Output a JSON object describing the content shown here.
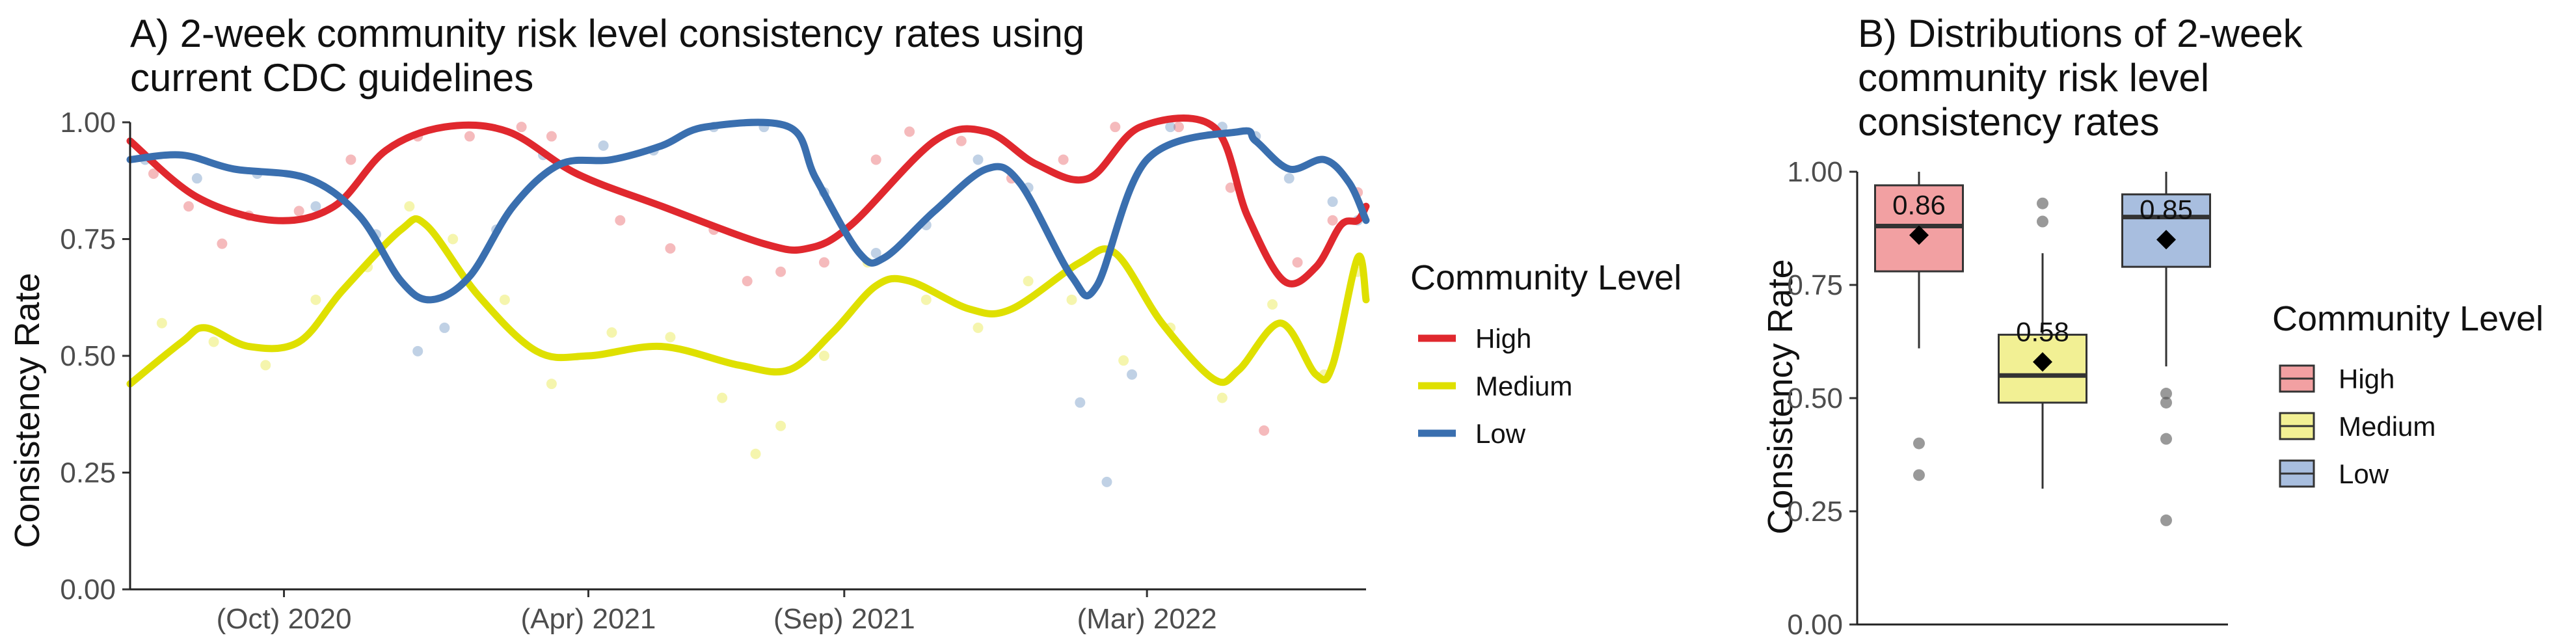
{
  "chart_data": [
    {
      "type": "scatter",
      "title_lines": [
        "A) 2-week community risk level consistency rates using",
        "current CDC guidelines"
      ],
      "xlabel": "",
      "ylabel": "Consistency Rate",
      "x_range": [
        "2020-07-01",
        "2022-07-10"
      ],
      "ylim": [
        0,
        1
      ],
      "x_ticks": [
        {
          "date": "2020-10-01",
          "label": "(Oct) 2020"
        },
        {
          "date": "2021-04-01",
          "label": "(Apr) 2021"
        },
        {
          "date": "2021-09-01",
          "label": "(Sep) 2021"
        },
        {
          "date": "2022-03-01",
          "label": "(Mar) 2022"
        }
      ],
      "y_ticks": [
        "0.00",
        "0.25",
        "0.50",
        "0.75",
        "1.00"
      ],
      "grid": false,
      "legend_title": "Community Level",
      "legend_position": "right",
      "series": [
        {
          "name": "High",
          "color": "#e0282e",
          "smooth": [
            [
              "2020-07-01",
              0.96
            ],
            [
              "2020-08-10",
              0.84
            ],
            [
              "2020-09-25",
              0.79
            ],
            [
              "2020-10-31",
              0.82
            ],
            [
              "2020-12-01",
              0.94
            ],
            [
              "2021-01-05",
              0.99
            ],
            [
              "2021-02-12",
              0.98
            ],
            [
              "2021-03-25",
              0.89
            ],
            [
              "2021-05-15",
              0.82
            ],
            [
              "2021-07-15",
              0.74
            ],
            [
              "2021-08-10",
              0.73
            ],
            [
              "2021-09-05",
              0.78
            ],
            [
              "2021-10-25",
              0.96
            ],
            [
              "2021-11-25",
              0.98
            ],
            [
              "2021-12-25",
              0.91
            ],
            [
              "2022-01-25",
              0.88
            ],
            [
              "2022-02-25",
              0.99
            ],
            [
              "2022-04-10",
              0.99
            ],
            [
              "2022-04-30",
              0.8
            ],
            [
              "2022-05-22",
              0.66
            ],
            [
              "2022-06-10",
              0.69
            ],
            [
              "2022-06-25",
              0.78
            ],
            [
              "2022-07-05",
              0.79
            ],
            [
              "2022-07-10",
              0.82
            ]
          ],
          "points": [
            [
              "2020-07-15",
              0.89
            ],
            [
              "2020-08-05",
              0.82
            ],
            [
              "2020-08-25",
              0.74
            ],
            [
              "2020-09-10",
              0.8
            ],
            [
              "2020-10-10",
              0.81
            ],
            [
              "2020-11-10",
              0.92
            ],
            [
              "2020-12-20",
              0.97
            ],
            [
              "2021-01-20",
              0.97
            ],
            [
              "2021-02-20",
              0.99
            ],
            [
              "2021-03-10",
              0.97
            ],
            [
              "2021-04-20",
              0.79
            ],
            [
              "2021-05-20",
              0.73
            ],
            [
              "2021-06-15",
              0.77
            ],
            [
              "2021-07-05",
              0.66
            ],
            [
              "2021-07-25",
              0.68
            ],
            [
              "2021-08-20",
              0.7
            ],
            [
              "2021-09-20",
              0.92
            ],
            [
              "2021-10-10",
              0.98
            ],
            [
              "2021-11-10",
              0.96
            ],
            [
              "2021-12-10",
              0.88
            ],
            [
              "2022-01-10",
              0.92
            ],
            [
              "2022-02-10",
              0.99
            ],
            [
              "2022-03-20",
              0.99
            ],
            [
              "2022-04-20",
              0.86
            ],
            [
              "2022-05-10",
              0.34
            ],
            [
              "2022-05-30",
              0.7
            ],
            [
              "2022-06-20",
              0.79
            ],
            [
              "2022-07-05",
              0.85
            ]
          ]
        },
        {
          "name": "Medium",
          "color": "#dfe000",
          "smooth": [
            [
              "2020-07-01",
              0.44
            ],
            [
              "2020-08-01",
              0.53
            ],
            [
              "2020-08-15",
              0.56
            ],
            [
              "2020-09-10",
              0.52
            ],
            [
              "2020-10-10",
              0.53
            ],
            [
              "2020-11-05",
              0.64
            ],
            [
              "2020-12-10",
              0.77
            ],
            [
              "2020-12-25",
              0.78
            ],
            [
              "2021-01-25",
              0.63
            ],
            [
              "2021-03-01",
              0.51
            ],
            [
              "2021-04-01",
              0.5
            ],
            [
              "2021-05-15",
              0.52
            ],
            [
              "2021-06-30",
              0.48
            ],
            [
              "2021-07-30",
              0.47
            ],
            [
              "2021-08-25",
              0.55
            ],
            [
              "2021-09-20",
              0.65
            ],
            [
              "2021-10-10",
              0.66
            ],
            [
              "2021-11-15",
              0.6
            ],
            [
              "2021-12-10",
              0.6
            ],
            [
              "2022-01-20",
              0.7
            ],
            [
              "2022-02-10",
              0.72
            ],
            [
              "2022-03-10",
              0.57
            ],
            [
              "2022-04-10",
              0.45
            ],
            [
              "2022-04-25",
              0.47
            ],
            [
              "2022-05-20",
              0.57
            ],
            [
              "2022-06-10",
              0.46
            ],
            [
              "2022-06-20",
              0.48
            ],
            [
              "2022-07-05",
              0.71
            ],
            [
              "2022-07-10",
              0.62
            ]
          ],
          "points": [
            [
              "2020-07-20",
              0.57
            ],
            [
              "2020-08-20",
              0.53
            ],
            [
              "2020-09-20",
              0.48
            ],
            [
              "2020-10-20",
              0.62
            ],
            [
              "2020-11-20",
              0.69
            ],
            [
              "2020-12-15",
              0.82
            ],
            [
              "2021-01-10",
              0.75
            ],
            [
              "2021-02-10",
              0.62
            ],
            [
              "2021-03-10",
              0.44
            ],
            [
              "2021-04-15",
              0.55
            ],
            [
              "2021-05-20",
              0.54
            ],
            [
              "2021-06-20",
              0.41
            ],
            [
              "2021-07-10",
              0.29
            ],
            [
              "2021-07-25",
              0.35
            ],
            [
              "2021-08-20",
              0.5
            ],
            [
              "2021-09-15",
              0.7
            ],
            [
              "2021-10-20",
              0.62
            ],
            [
              "2021-11-20",
              0.56
            ],
            [
              "2021-12-20",
              0.66
            ],
            [
              "2022-01-15",
              0.62
            ],
            [
              "2022-02-15",
              0.49
            ],
            [
              "2022-03-15",
              0.56
            ],
            [
              "2022-04-15",
              0.41
            ],
            [
              "2022-05-15",
              0.61
            ],
            [
              "2022-06-15",
              0.46
            ],
            [
              "2022-07-05",
              0.68
            ]
          ]
        },
        {
          "name": "Low",
          "color": "#3a6faf",
          "smooth": [
            [
              "2020-07-01",
              0.92
            ],
            [
              "2020-08-01",
              0.93
            ],
            [
              "2020-09-01",
              0.9
            ],
            [
              "2020-10-15",
              0.88
            ],
            [
              "2020-11-15",
              0.8
            ],
            [
              "2020-12-10",
              0.66
            ],
            [
              "2020-12-28",
              0.62
            ],
            [
              "2021-01-20",
              0.67
            ],
            [
              "2021-02-15",
              0.82
            ],
            [
              "2021-03-15",
              0.91
            ],
            [
              "2021-04-15",
              0.92
            ],
            [
              "2021-05-15",
              0.95
            ],
            [
              "2021-06-10",
              0.99
            ],
            [
              "2021-07-30",
              0.99
            ],
            [
              "2021-08-15",
              0.88
            ],
            [
              "2021-09-10",
              0.72
            ],
            [
              "2021-09-25",
              0.71
            ],
            [
              "2021-10-25",
              0.81
            ],
            [
              "2021-11-25",
              0.9
            ],
            [
              "2021-12-15",
              0.87
            ],
            [
              "2022-01-15",
              0.67
            ],
            [
              "2022-01-30",
              0.65
            ],
            [
              "2022-03-01",
              0.92
            ],
            [
              "2022-04-25",
              0.98
            ],
            [
              "2022-05-05",
              0.96
            ],
            [
              "2022-05-25",
              0.9
            ],
            [
              "2022-06-15",
              0.92
            ],
            [
              "2022-06-30",
              0.87
            ],
            [
              "2022-07-10",
              0.79
            ]
          ],
          "points": [
            [
              "2020-07-10",
              0.92
            ],
            [
              "2020-08-10",
              0.88
            ],
            [
              "2020-09-15",
              0.89
            ],
            [
              "2020-10-20",
              0.82
            ],
            [
              "2020-11-25",
              0.76
            ],
            [
              "2020-12-20",
              0.51
            ],
            [
              "2021-01-05",
              0.56
            ],
            [
              "2021-02-05",
              0.77
            ],
            [
              "2021-03-05",
              0.93
            ],
            [
              "2021-04-10",
              0.95
            ],
            [
              "2021-05-10",
              0.94
            ],
            [
              "2021-06-15",
              0.99
            ],
            [
              "2021-07-15",
              0.99
            ],
            [
              "2021-08-20",
              0.85
            ],
            [
              "2021-09-20",
              0.72
            ],
            [
              "2021-10-20",
              0.78
            ],
            [
              "2021-11-20",
              0.92
            ],
            [
              "2021-12-20",
              0.86
            ],
            [
              "2022-01-20",
              0.4
            ],
            [
              "2022-02-05",
              0.23
            ],
            [
              "2022-02-20",
              0.46
            ],
            [
              "2022-03-15",
              0.99
            ],
            [
              "2022-04-15",
              0.99
            ],
            [
              "2022-05-05",
              0.97
            ],
            [
              "2022-05-25",
              0.88
            ],
            [
              "2022-06-20",
              0.83
            ],
            [
              "2022-07-05",
              0.79
            ]
          ]
        }
      ]
    },
    {
      "type": "box",
      "title_lines": [
        "B) Distributions of 2-week",
        "community risk level",
        "consistency rates"
      ],
      "xlabel": "",
      "ylabel": "Consistency Rate",
      "ylim": [
        0,
        1
      ],
      "y_ticks": [
        "0.00",
        "0.25",
        "0.50",
        "0.75",
        "1.00"
      ],
      "grid": false,
      "legend_title": "Community Level",
      "legend_position": "right",
      "categories": [
        "High",
        "Medium",
        "Low"
      ],
      "boxes": [
        {
          "name": "High",
          "fill": "#f2a0a2",
          "min": 0.61,
          "q1": 0.78,
          "median": 0.88,
          "q3": 0.97,
          "max": 1.0,
          "mean": 0.86,
          "mean_label": "0.86",
          "outliers": [
            0.4,
            0.33
          ]
        },
        {
          "name": "Medium",
          "fill": "#f2f094",
          "min": 0.3,
          "q1": 0.49,
          "median": 0.55,
          "q3": 0.64,
          "max": 0.82,
          "mean": 0.58,
          "mean_label": "0.58",
          "outliers": [
            0.93,
            0.89
          ]
        },
        {
          "name": "Low",
          "fill": "#a8bedf",
          "min": 0.57,
          "q1": 0.79,
          "median": 0.9,
          "q3": 0.95,
          "max": 1.0,
          "mean": 0.85,
          "mean_label": "0.85",
          "outliers": [
            0.51,
            0.49,
            0.41,
            0.23
          ]
        }
      ]
    }
  ]
}
